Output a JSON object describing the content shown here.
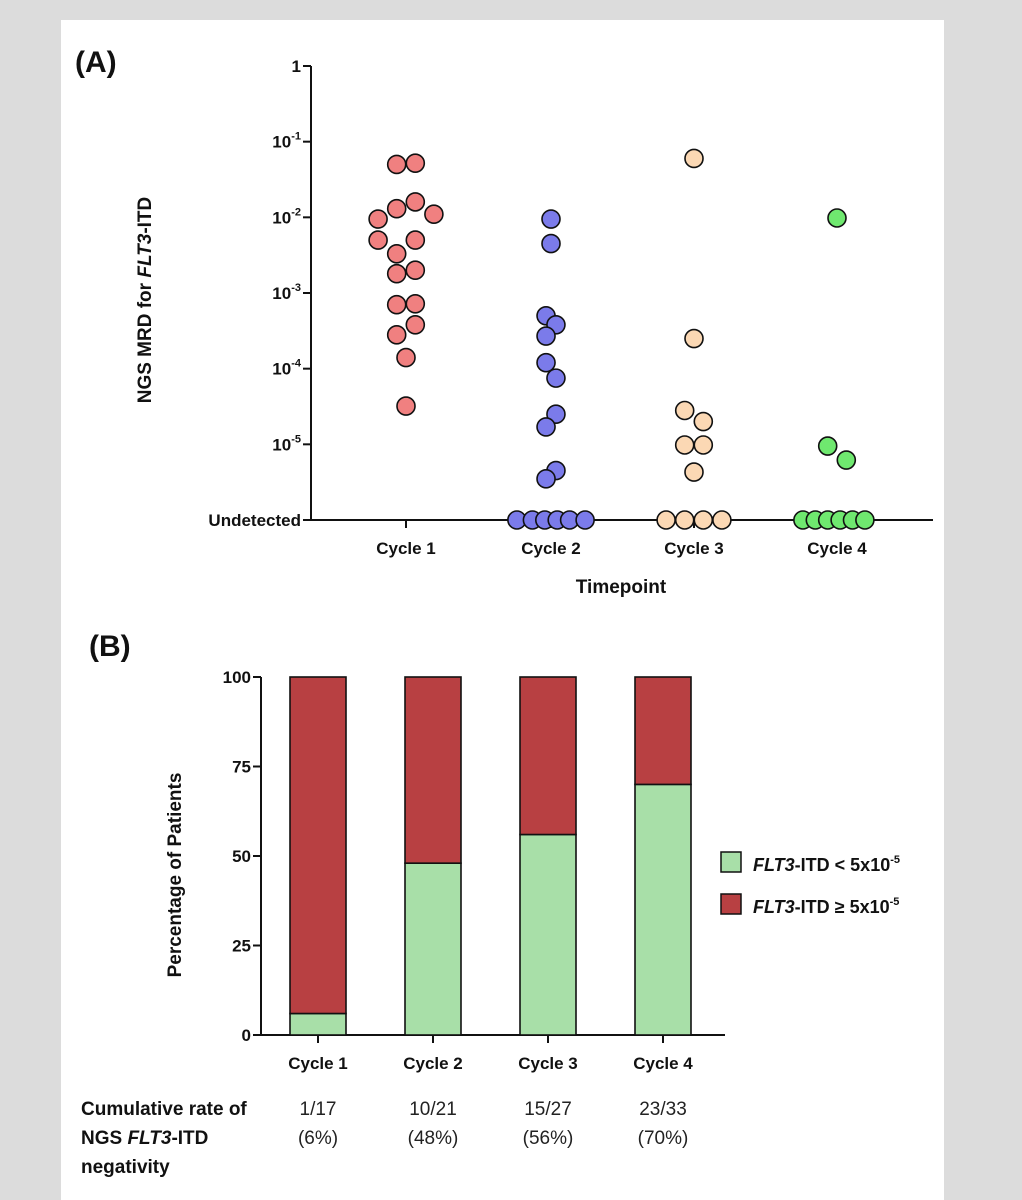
{
  "panels": {
    "a_label": "(A)",
    "b_label": "(B)"
  },
  "chart_data": [
    {
      "type": "scatter",
      "title": "",
      "xlabel": "Timepoint",
      "ylabel_parts": [
        "NGS MRD for ",
        "FLT3",
        "-ITD"
      ],
      "categories": [
        "Cycle 1",
        "Cycle 2",
        "Cycle 3",
        "Cycle 4"
      ],
      "yscale": "log",
      "ylim": [
        1e-06,
        1
      ],
      "ytick_labels": [
        {
          "value": 1,
          "base": "1",
          "exp": ""
        },
        {
          "value": 0.1,
          "base": "10",
          "exp": "-1"
        },
        {
          "value": 0.01,
          "base": "10",
          "exp": "-2"
        },
        {
          "value": 0.001,
          "base": "10",
          "exp": "-3"
        },
        {
          "value": 0.0001,
          "base": "10",
          "exp": "-4"
        },
        {
          "value": 1e-05,
          "base": "10",
          "exp": "-5"
        },
        {
          "value": 1e-06,
          "base": "Undetected",
          "exp": ""
        }
      ],
      "series": [
        {
          "category": "Cycle 1",
          "color": "#f08080",
          "points": [
            [
              -0.15,
              0.05
            ],
            [
              0.15,
              0.052
            ],
            [
              -0.15,
              0.013
            ],
            [
              0.15,
              0.016
            ],
            [
              0.45,
              0.011
            ],
            [
              -0.45,
              0.0095
            ],
            [
              -0.45,
              0.005
            ],
            [
              -0.15,
              0.0033
            ],
            [
              0.15,
              0.005
            ],
            [
              -0.15,
              0.0018
            ],
            [
              0.15,
              0.002
            ],
            [
              -0.15,
              0.0007
            ],
            [
              0.15,
              0.00072
            ],
            [
              0.15,
              0.00038
            ],
            [
              -0.15,
              0.00028
            ],
            [
              0,
              0.00014
            ],
            [
              0,
              3.2e-05
            ]
          ]
        },
        {
          "category": "Cycle 2",
          "color": "#7b7bea",
          "points": [
            [
              0,
              0.0095
            ],
            [
              0,
              0.0045
            ],
            [
              -0.08,
              0.0005
            ],
            [
              0.08,
              0.00038
            ],
            [
              -0.08,
              0.00027
            ],
            [
              -0.08,
              0.00012
            ],
            [
              0.08,
              7.5e-05
            ],
            [
              0.08,
              2.5e-05
            ],
            [
              -0.08,
              1.7e-05
            ],
            [
              0.08,
              4.5e-06
            ],
            [
              -0.08,
              3.5e-06
            ],
            [
              -0.55,
              1e-06
            ],
            [
              -0.3,
              1e-06
            ],
            [
              -0.1,
              1e-06
            ],
            [
              0.1,
              1e-06
            ],
            [
              0.3,
              1e-06
            ],
            [
              0.55,
              1e-06
            ]
          ]
        },
        {
          "category": "Cycle 3",
          "color": "#fbd8b4",
          "points": [
            [
              0,
              0.06
            ],
            [
              0,
              0.00025
            ],
            [
              -0.15,
              2.8e-05
            ],
            [
              0.15,
              2e-05
            ],
            [
              -0.15,
              9.8e-06
            ],
            [
              0.15,
              9.8e-06
            ],
            [
              0,
              4.3e-06
            ],
            [
              -0.45,
              1e-06
            ],
            [
              -0.15,
              1e-06
            ],
            [
              0.15,
              1e-06
            ],
            [
              0.45,
              1e-06
            ]
          ]
        },
        {
          "category": "Cycle 4",
          "color": "#6fe86f",
          "points": [
            [
              0,
              0.0098
            ],
            [
              -0.15,
              9.5e-06
            ],
            [
              0.15,
              6.2e-06
            ],
            [
              -0.55,
              1e-06
            ],
            [
              -0.35,
              1e-06
            ],
            [
              -0.15,
              1e-06
            ],
            [
              0.05,
              1e-06
            ],
            [
              0.25,
              1e-06
            ],
            [
              0.45,
              1e-06
            ]
          ]
        }
      ]
    },
    {
      "type": "bar",
      "stacked": true,
      "title": "",
      "xlabel": "",
      "ylabel": "Percentage of Patients",
      "categories": [
        "Cycle 1",
        "Cycle 2",
        "Cycle 3",
        "Cycle 4"
      ],
      "ylim": [
        0,
        100
      ],
      "yticks": [
        0,
        25,
        50,
        75,
        100
      ],
      "series": [
        {
          "name_parts": [
            "FLT3",
            "-ITD < 5x10",
            "-5"
          ],
          "color": "#a8dfa8",
          "values": [
            6,
            48,
            56,
            70
          ]
        },
        {
          "name_parts": [
            "FLT3",
            "-ITD ",
            "≥",
            " 5x10",
            "-5"
          ],
          "color": "#b84042",
          "values": [
            94,
            52,
            44,
            30
          ]
        }
      ],
      "legend_position": "right"
    }
  ],
  "table": {
    "row_label_lines": [
      [
        "Cumulative rate of"
      ],
      [
        "NGS ",
        "FLT3",
        "-ITD"
      ],
      [
        "negativity"
      ]
    ],
    "cells": [
      {
        "fraction": "1/17",
        "percent": "(6%)"
      },
      {
        "fraction": "10/21",
        "percent": "(48%)"
      },
      {
        "fraction": "15/27",
        "percent": "(56%)"
      },
      {
        "fraction": "23/33",
        "percent": "(70%)"
      }
    ]
  }
}
